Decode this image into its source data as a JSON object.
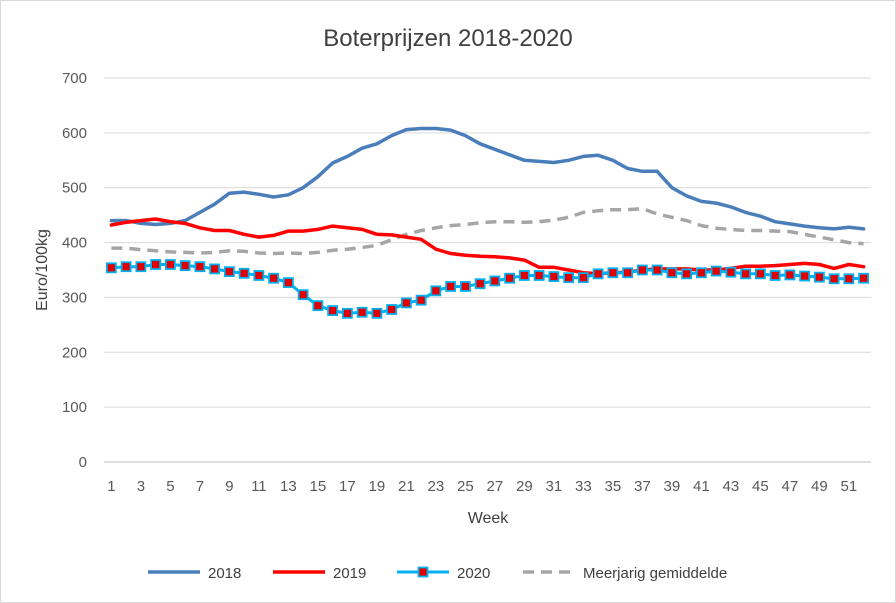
{
  "chart_data": {
    "type": "line",
    "title": "Boterprijzen 2018-2020",
    "xlabel": "Week",
    "ylabel": "Euro/100kg",
    "ylim": [
      0,
      700
    ],
    "yticks": [
      0,
      100,
      200,
      300,
      400,
      500,
      600,
      700
    ],
    "xticks": [
      1,
      3,
      5,
      7,
      9,
      11,
      13,
      15,
      17,
      19,
      21,
      23,
      25,
      27,
      29,
      31,
      33,
      35,
      37,
      39,
      41,
      43,
      45,
      47,
      49,
      51
    ],
    "x": [
      1,
      2,
      3,
      4,
      5,
      6,
      7,
      8,
      9,
      10,
      11,
      12,
      13,
      14,
      15,
      16,
      17,
      18,
      19,
      20,
      21,
      22,
      23,
      24,
      25,
      26,
      27,
      28,
      29,
      30,
      31,
      32,
      33,
      34,
      35,
      36,
      37,
      38,
      39,
      40,
      41,
      42,
      43,
      44,
      45,
      46,
      47,
      48,
      49,
      50,
      51,
      52
    ],
    "grid": "horizontal",
    "legend_position": "bottom",
    "series": [
      {
        "name": "2018",
        "color": "#4a7ebb",
        "style": "solid",
        "values": [
          440,
          440,
          435,
          433,
          435,
          440,
          455,
          470,
          490,
          492,
          488,
          483,
          487,
          500,
          520,
          545,
          557,
          572,
          580,
          595,
          606,
          608,
          608,
          605,
          595,
          580,
          570,
          560,
          550,
          548,
          546,
          550,
          557,
          559,
          550,
          535,
          530,
          530,
          500,
          485,
          475,
          472,
          465,
          455,
          448,
          438,
          434,
          430,
          427,
          425,
          428,
          425
        ]
      },
      {
        "name": "2019",
        "color": "#ff0000",
        "style": "solid",
        "values": [
          432,
          437,
          440,
          443,
          438,
          435,
          427,
          422,
          422,
          415,
          410,
          413,
          421,
          421,
          424,
          430,
          427,
          424,
          415,
          414,
          410,
          406,
          388,
          380,
          377,
          375,
          374,
          372,
          368,
          355,
          355,
          350,
          345,
          343,
          345,
          346,
          350,
          352,
          352,
          352,
          350,
          350,
          353,
          357,
          357,
          358,
          360,
          362,
          360,
          353,
          360,
          356
        ]
      },
      {
        "name": "2020",
        "color": "#00b0f0",
        "marker_color": "#e00000",
        "style": "markers",
        "values": [
          354,
          356,
          356,
          360,
          360,
          358,
          356,
          352,
          347,
          344,
          340,
          335,
          327,
          305,
          285,
          276,
          271,
          273,
          271,
          278,
          290,
          295,
          312,
          320,
          320,
          325,
          330,
          335,
          340,
          340,
          338,
          336,
          336,
          343,
          345,
          345,
          350,
          350,
          345,
          343,
          345,
          348,
          346,
          343,
          343,
          340,
          341,
          339,
          337,
          334,
          334,
          335
        ]
      },
      {
        "name": "Meerjarig gemiddelde",
        "color": "#a6a6a6",
        "style": "dashed",
        "values": [
          390,
          390,
          387,
          385,
          383,
          382,
          381,
          382,
          385,
          384,
          381,
          380,
          381,
          380,
          382,
          386,
          388,
          391,
          395,
          405,
          415,
          422,
          427,
          431,
          433,
          436,
          438,
          438,
          437,
          438,
          441,
          446,
          455,
          458,
          460,
          460,
          462,
          452,
          446,
          440,
          431,
          426,
          424,
          422,
          422,
          421,
          420,
          415,
          410,
          405,
          400,
          398
        ]
      }
    ]
  }
}
